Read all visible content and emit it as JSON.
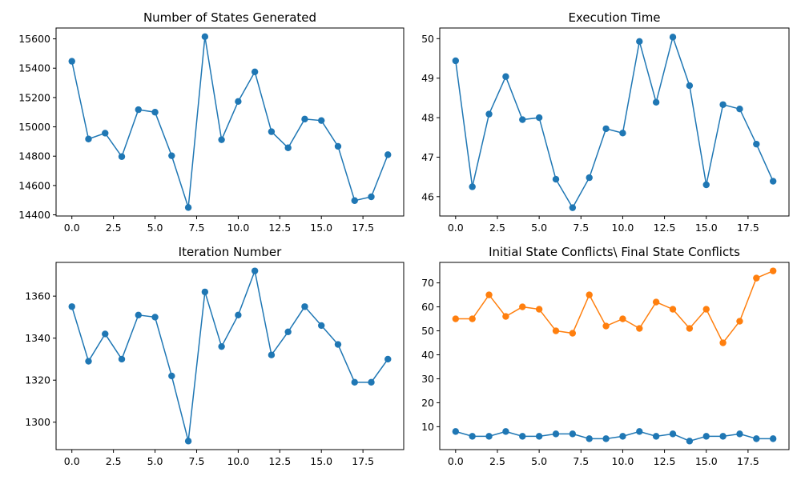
{
  "chart_data": [
    {
      "type": "line",
      "title": "Number of States Generated",
      "xlabel": "",
      "ylabel": "",
      "xlim": [
        -0.95,
        19.95
      ],
      "ylim": [
        14392,
        15674
      ],
      "xticks": [
        0,
        2.5,
        5,
        7.5,
        10,
        12.5,
        15,
        17.5
      ],
      "xtick_labels": [
        "0.0",
        "2.5",
        "5.0",
        "7.5",
        "10.0",
        "12.5",
        "15.0",
        "17.5"
      ],
      "yticks": [
        14400,
        14600,
        14800,
        15000,
        15200,
        15400,
        15600
      ],
      "ytick_labels": [
        "14400",
        "14600",
        "14800",
        "15000",
        "15200",
        "15400",
        "15600"
      ],
      "grid": false,
      "series": [
        {
          "color": "#1f77b4",
          "x": [
            0,
            1,
            2,
            3,
            4,
            5,
            6,
            7,
            8,
            9,
            10,
            11,
            12,
            13,
            14,
            15,
            16,
            17,
            18,
            19
          ],
          "values": [
            15447,
            14917,
            14957,
            14797,
            15117,
            15100,
            14803,
            14450,
            15615,
            14912,
            15173,
            15375,
            14967,
            14857,
            15053,
            15043,
            14867,
            14497,
            14523,
            14810
          ]
        }
      ]
    },
    {
      "type": "line",
      "title": "Execution Time",
      "xlabel": "",
      "ylabel": "",
      "xlim": [
        -0.95,
        19.95
      ],
      "ylim": [
        45.51,
        50.27
      ],
      "xticks": [
        0,
        2.5,
        5,
        7.5,
        10,
        12.5,
        15,
        17.5
      ],
      "xtick_labels": [
        "0.0",
        "2.5",
        "5.0",
        "7.5",
        "10.0",
        "12.5",
        "15.0",
        "17.5"
      ],
      "yticks": [
        46,
        47,
        48,
        49,
        50
      ],
      "ytick_labels": [
        "46",
        "47",
        "48",
        "49",
        "50"
      ],
      "grid": false,
      "series": [
        {
          "color": "#1f77b4",
          "x": [
            0,
            1,
            2,
            3,
            4,
            5,
            6,
            7,
            8,
            9,
            10,
            11,
            12,
            13,
            14,
            15,
            16,
            17,
            18,
            19
          ],
          "values": [
            49.44,
            46.25,
            48.09,
            49.04,
            47.95,
            48.0,
            46.44,
            45.72,
            46.48,
            47.72,
            47.61,
            49.93,
            48.39,
            50.04,
            48.81,
            46.3,
            48.33,
            48.22,
            47.33,
            46.39
          ]
        }
      ]
    },
    {
      "type": "line",
      "title": "Iteration Number",
      "xlabel": "",
      "ylabel": "",
      "xlim": [
        -0.95,
        19.95
      ],
      "ylim": [
        1286.95,
        1376.05
      ],
      "xticks": [
        0,
        2.5,
        5,
        7.5,
        10,
        12.5,
        15,
        17.5
      ],
      "xtick_labels": [
        "0.0",
        "2.5",
        "5.0",
        "7.5",
        "10.0",
        "12.5",
        "15.0",
        "17.5"
      ],
      "yticks": [
        1300,
        1320,
        1340,
        1360
      ],
      "ytick_labels": [
        "1300",
        "1320",
        "1340",
        "1360"
      ],
      "grid": false,
      "series": [
        {
          "color": "#1f77b4",
          "x": [
            0,
            1,
            2,
            3,
            4,
            5,
            6,
            7,
            8,
            9,
            10,
            11,
            12,
            13,
            14,
            15,
            16,
            17,
            18,
            19
          ],
          "values": [
            1355,
            1329,
            1342,
            1330,
            1351,
            1350,
            1322,
            1291,
            1362,
            1336,
            1351,
            1372,
            1332,
            1343,
            1355,
            1346,
            1337,
            1319,
            1319,
            1330
          ]
        }
      ]
    },
    {
      "type": "line",
      "title": "Initial State Conflicts\\ Final State Conflicts",
      "xlabel": "",
      "ylabel": "",
      "xlim": [
        -0.95,
        19.95
      ],
      "ylim": [
        0.45,
        78.55
      ],
      "xticks": [
        0,
        2.5,
        5,
        7.5,
        10,
        12.5,
        15,
        17.5
      ],
      "xtick_labels": [
        "0.0",
        "2.5",
        "5.0",
        "7.5",
        "10.0",
        "12.5",
        "15.0",
        "17.5"
      ],
      "yticks": [
        10,
        20,
        30,
        40,
        50,
        60,
        70
      ],
      "ytick_labels": [
        "10",
        "20",
        "30",
        "40",
        "50",
        "60",
        "70"
      ],
      "grid": false,
      "series": [
        {
          "color": "#1f77b4",
          "x": [
            0,
            1,
            2,
            3,
            4,
            5,
            6,
            7,
            8,
            9,
            10,
            11,
            12,
            13,
            14,
            15,
            16,
            17,
            18,
            19
          ],
          "values": [
            8,
            6,
            6,
            8,
            6,
            6,
            7,
            7,
            5,
            5,
            6,
            8,
            6,
            7,
            4,
            6,
            6,
            7,
            5,
            5
          ]
        },
        {
          "color": "#ff7f0e",
          "x": [
            0,
            1,
            2,
            3,
            4,
            5,
            6,
            7,
            8,
            9,
            10,
            11,
            12,
            13,
            14,
            15,
            16,
            17,
            18,
            19
          ],
          "values": [
            55,
            55,
            65,
            56,
            60,
            59,
            50,
            49,
            65,
            52,
            55,
            51,
            62,
            59,
            51,
            59,
            45,
            54,
            72,
            75
          ]
        }
      ]
    }
  ]
}
